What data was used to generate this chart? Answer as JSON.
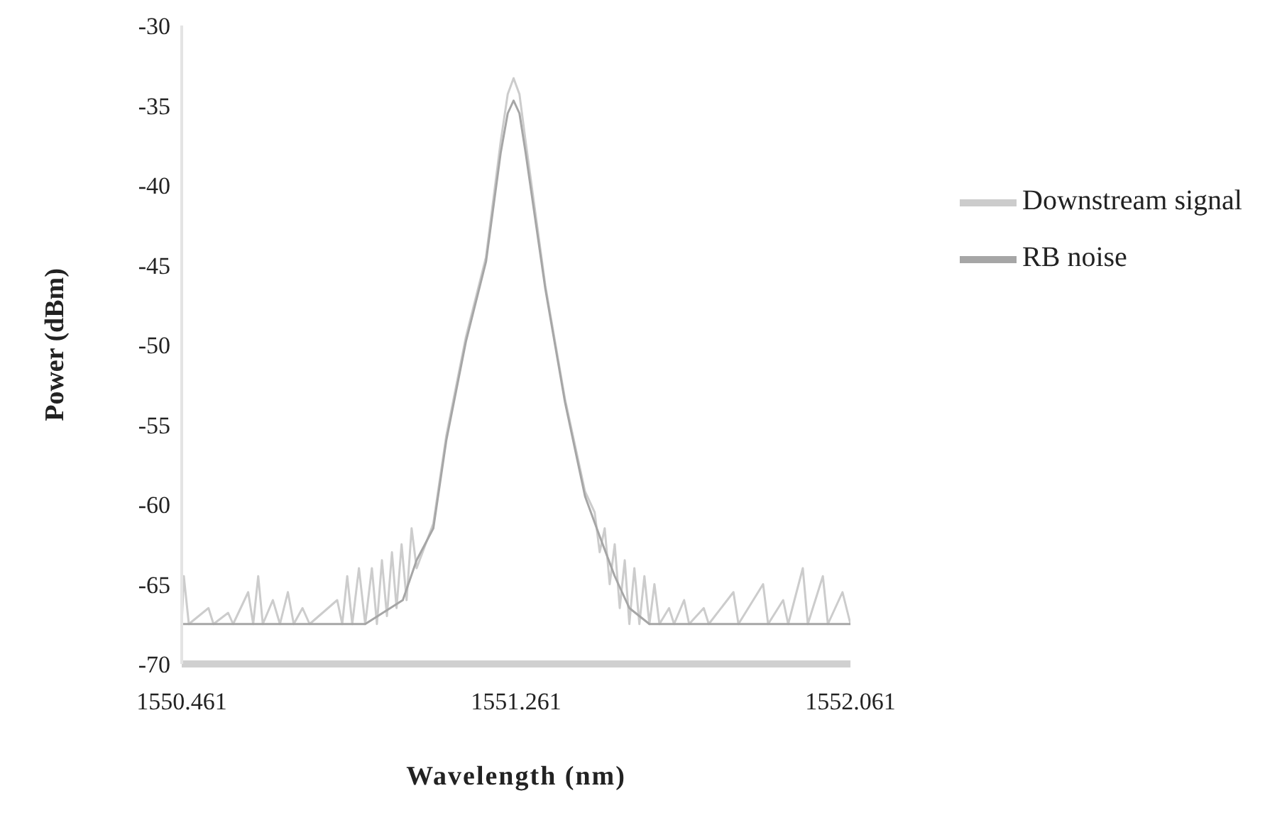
{
  "chart_data": {
    "type": "line",
    "xlabel": "Wavelength (nm)",
    "ylabel": "Power (dBm)",
    "xlim": [
      1550.461,
      1552.061
    ],
    "xticks": [
      1550.461,
      1551.261,
      1552.061
    ],
    "ylim": [
      -70,
      -30
    ],
    "yticks": [
      -70,
      -65,
      -60,
      -55,
      -50,
      -45,
      -40,
      -35,
      -30
    ],
    "grid": false,
    "legend": "top right",
    "marker": "none",
    "line_style": "solid",
    "series": [
      {
        "name": "Downstream signal",
        "color": "#cccccc",
        "x": [
          1550.461,
          1550.466,
          1550.478,
          1550.525,
          1550.537,
          1550.572,
          1550.584,
          1550.62,
          1550.632,
          1550.644,
          1550.655,
          1550.679,
          1550.696,
          1550.715,
          1550.729,
          1550.75,
          1550.767,
          1550.833,
          1550.845,
          1550.857,
          1550.869,
          1550.885,
          1550.9,
          1550.916,
          1550.928,
          1550.94,
          1550.952,
          1550.964,
          1550.975,
          1550.987,
          1550.999,
          1551.011,
          1551.023,
          1551.063,
          1551.094,
          1551.141,
          1551.189,
          1551.224,
          1551.241,
          1551.255,
          1551.269,
          1551.284,
          1551.331,
          1551.378,
          1551.426,
          1551.449,
          1551.461,
          1551.473,
          1551.485,
          1551.497,
          1551.509,
          1551.521,
          1551.532,
          1551.544,
          1551.556,
          1551.568,
          1551.58,
          1551.592,
          1551.604,
          1551.627,
          1551.639,
          1551.663,
          1551.675,
          1551.71,
          1551.722,
          1551.781,
          1551.793,
          1551.852,
          1551.864,
          1551.9,
          1551.912,
          1551.947,
          1551.959,
          1551.995,
          1552.007,
          1552.042,
          1552.061
        ],
        "values": [
          -67.5,
          -64.5,
          -67.5,
          -66.5,
          -67.5,
          -66.8,
          -67.5,
          -65.5,
          -67.5,
          -64.5,
          -67.5,
          -66,
          -67.5,
          -65.5,
          -67.5,
          -66.5,
          -67.5,
          -66,
          -67.5,
          -64.5,
          -67.5,
          -64,
          -67.5,
          -64,
          -67.5,
          -63.5,
          -67,
          -63,
          -66.5,
          -62.5,
          -66,
          -61.5,
          -64,
          -61.2,
          -55.7,
          -49.5,
          -44.5,
          -37.3,
          -34.3,
          -33.3,
          -34.3,
          -37.3,
          -46.3,
          -53.4,
          -59.2,
          -60.5,
          -63,
          -61.5,
          -65,
          -62.5,
          -66.5,
          -63.5,
          -67.5,
          -64,
          -67.5,
          -64.5,
          -67.5,
          -65,
          -67.5,
          -66.5,
          -67.5,
          -66,
          -67.5,
          -66.5,
          -67.5,
          -65.5,
          -67.5,
          -65,
          -67.5,
          -66,
          -67.5,
          -64,
          -67.5,
          -64.5,
          -67.5,
          -65.5,
          -67.5
        ]
      },
      {
        "name": "RB noise",
        "color": "#a6a6a6",
        "x": [
          1550.461,
          1550.9,
          1550.99,
          1551.023,
          1551.063,
          1551.094,
          1551.141,
          1551.189,
          1551.224,
          1551.241,
          1551.255,
          1551.269,
          1551.284,
          1551.331,
          1551.378,
          1551.426,
          1551.461,
          1551.497,
          1551.532,
          1551.58,
          1552.061
        ],
        "values": [
          -67.5,
          -67.5,
          -66,
          -63.5,
          -61.5,
          -56,
          -49.8,
          -44.8,
          -38,
          -35.5,
          -34.7,
          -35.5,
          -38,
          -46.5,
          -53.6,
          -59.5,
          -62,
          -64.5,
          -66.5,
          -67.5,
          -67.5
        ]
      }
    ]
  }
}
